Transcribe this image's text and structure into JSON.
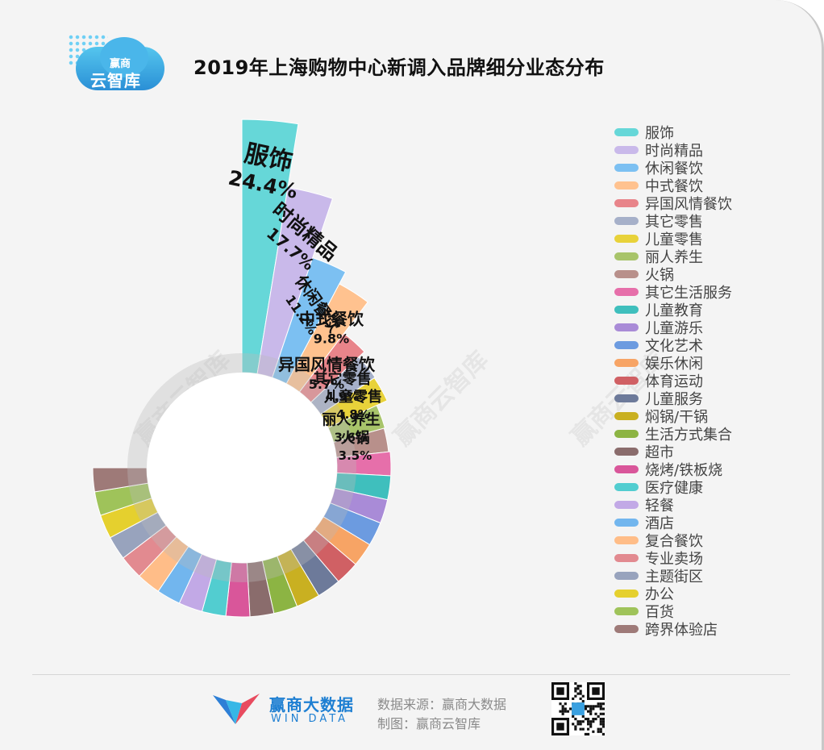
{
  "header": {
    "title": "2019年上海购物中心新调入品牌细分业态分布",
    "logo_line1": "赢商",
    "logo_line2": "云智库"
  },
  "watermark": "赢商云智库",
  "chart_data": {
    "type": "pie",
    "variant": "nightingale-rose-donut",
    "title": "2019年上海购物中心新调入品牌细分业态分布",
    "unit": "%",
    "categories": [
      "服饰",
      "时尚精品",
      "休闲餐饮",
      "中式餐饮",
      "异国风情餐饮",
      "其它零售",
      "儿童零售",
      "丽人养生",
      "火锅",
      "其它生活服务",
      "儿童教育",
      "儿童游乐",
      "文化艺术",
      "娱乐休闲",
      "体育运动",
      "儿童服务",
      "焖锅/干锅",
      "生活方式集合",
      "超市",
      "烧烤/铁板烧",
      "医疗健康",
      "轻餐",
      "酒店",
      "复合餐饮",
      "专业卖场",
      "主题街区",
      "办公",
      "百货",
      "跨界体验店"
    ],
    "values": [
      24.4,
      17.7,
      11.2,
      9.8,
      5.7,
      4.9,
      4.8,
      3.6,
      3.5,
      2.3,
      2.0,
      1.8,
      1.7,
      1.6,
      1.5,
      1.4,
      1.3,
      1.2,
      1.1,
      1.0,
      0.9,
      0.8,
      0.7,
      0.5,
      0.4,
      0.3,
      0.2,
      0.1,
      0.1
    ],
    "labels": [
      "24.4%",
      "17.7%",
      "11.2%",
      "9.8%",
      "5.7%",
      "4.9%",
      "4.8%",
      "3.6%",
      "3.5%"
    ],
    "colors": [
      "#66d7d8",
      "#c9b9ea",
      "#7cc0f2",
      "#ffc28f",
      "#e8848a",
      "#a6b0c9",
      "#e8d23a",
      "#a8c46a",
      "#b8908b",
      "#e66faa",
      "#3fbfbd",
      "#a98bd7",
      "#6c9be0",
      "#f7a465",
      "#d06064",
      "#6d7a9a",
      "#c9b021",
      "#8cb443",
      "#8a6c6c",
      "#d9569a",
      "#52cdd0",
      "#c2a9e6",
      "#72b6ee",
      "#ffbd88",
      "#e28a90",
      "#98a3bd",
      "#e5d02e",
      "#9fc35a",
      "#9e7a78"
    ],
    "legend_position": "right"
  },
  "footer": {
    "brand_cn": "赢商大数据",
    "brand_en": "WIN DATA",
    "source": "数据来源：赢商大数据",
    "maker": "制图：赢商云智库"
  }
}
